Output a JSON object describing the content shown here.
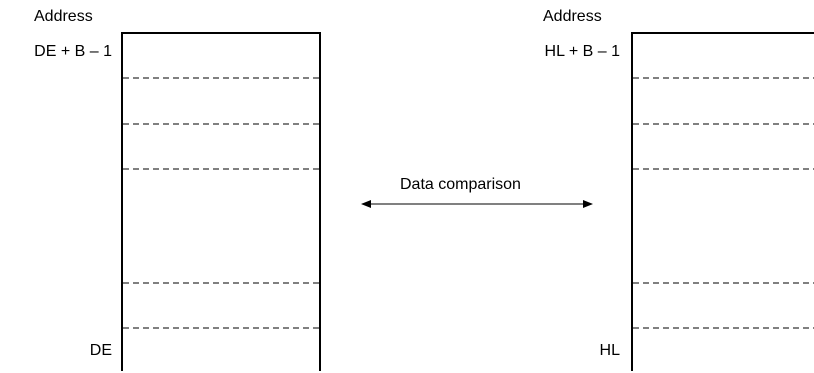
{
  "left_block": {
    "header": "Address",
    "top_address": "DE + B – 1",
    "bottom_address": "DE"
  },
  "right_block": {
    "header": "Address",
    "top_address": "HL + B – 1",
    "bottom_address": "HL"
  },
  "arrow": {
    "label": "Data comparison"
  }
}
